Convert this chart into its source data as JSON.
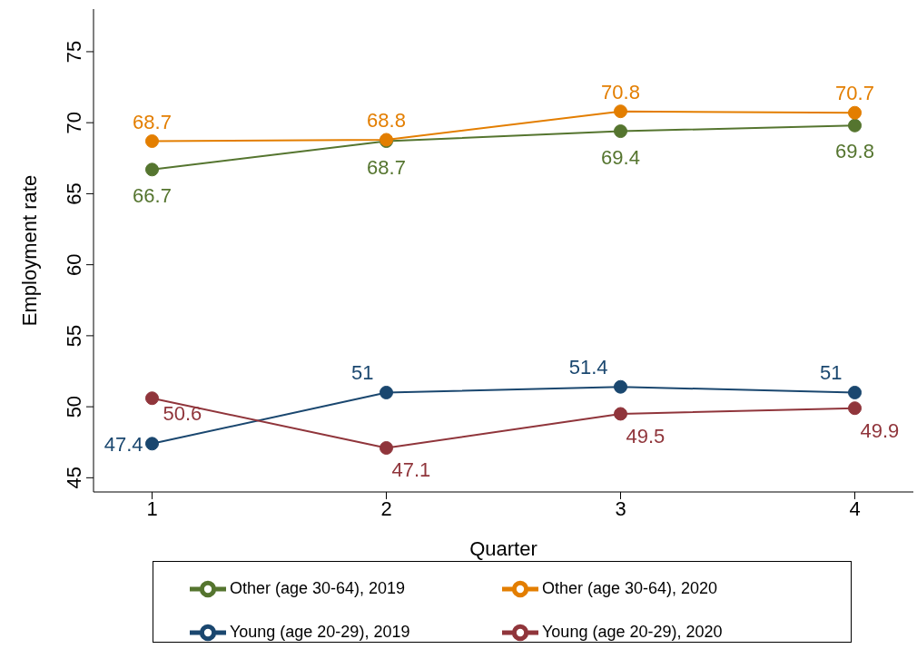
{
  "chart_data": {
    "type": "line",
    "xlabel": "Quarter",
    "ylabel": "Employment rate",
    "x": [
      1,
      2,
      3,
      4
    ],
    "xlim": [
      0.75,
      4.25
    ],
    "xticks": [
      1,
      2,
      3,
      4
    ],
    "ylim": [
      44,
      78
    ],
    "yticks": [
      45,
      50,
      55,
      60,
      65,
      70,
      75
    ],
    "series": [
      {
        "name": "Young (age 20-29), 2019",
        "color": "#1a476f",
        "values": [
          47.4,
          51,
          51.4,
          51
        ]
      },
      {
        "name": "Young (age 20-29), 2020",
        "color": "#90353b",
        "values": [
          50.6,
          47.1,
          49.5,
          49.9
        ]
      },
      {
        "name": "Other (age 30-64), 2019",
        "color": "#55752f",
        "values": [
          66.7,
          68.7,
          69.4,
          69.8
        ]
      },
      {
        "name": "Other (age 30-64), 2020",
        "color": "#e37e00",
        "values": [
          68.7,
          68.8,
          70.8,
          70.7
        ]
      }
    ],
    "data_labels": true,
    "marker": "circle",
    "grid": false,
    "legend": "bottom"
  }
}
